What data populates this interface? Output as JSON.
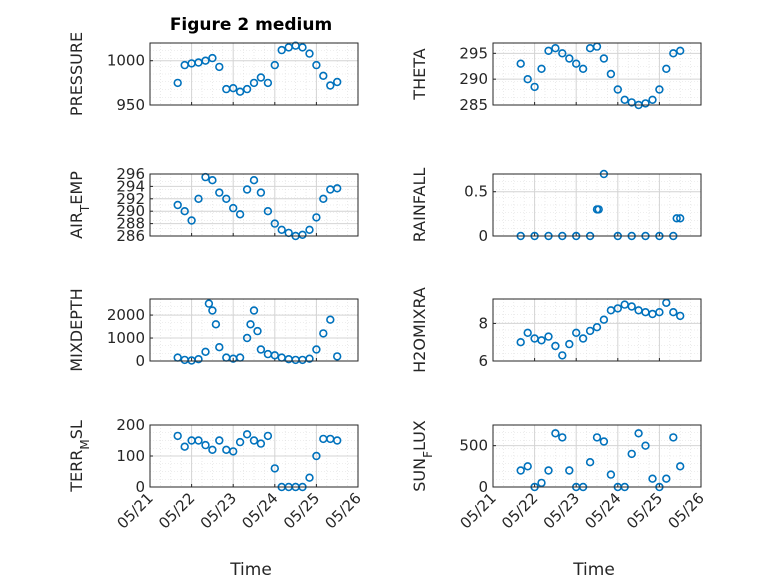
{
  "figure": {
    "title": "Figure 2 medium",
    "marker_color": "#0072BD",
    "grid": true
  },
  "chart_data": [
    {
      "type": "scatter",
      "ylabel": "PRESSURE",
      "ylim": [
        950,
        1020
      ],
      "yticks": [
        950,
        1000
      ],
      "x": [
        "05/21 16:00",
        "05/21 20:00",
        "05/22 00:00",
        "05/22 04:00",
        "05/22 08:00",
        "05/22 12:00",
        "05/22 16:00",
        "05/22 20:00",
        "05/23 00:00",
        "05/23 04:00",
        "05/23 08:00",
        "05/23 12:00",
        "05/23 16:00",
        "05/23 20:00",
        "05/24 00:00",
        "05/24 04:00",
        "05/24 08:00",
        "05/24 12:00",
        "05/24 16:00",
        "05/24 20:00",
        "05/25 00:00",
        "05/25 04:00",
        "05/25 08:00",
        "05/25 12:00"
      ],
      "y": [
        975,
        995,
        997,
        998,
        1000,
        1003,
        993,
        968,
        969,
        965,
        968,
        975,
        981,
        975,
        995,
        1012,
        1015,
        1017,
        1015,
        1008,
        995,
        983,
        972,
        976
      ]
    },
    {
      "type": "scatter",
      "ylabel": "THETA",
      "ylim": [
        285,
        297
      ],
      "yticks": [
        285,
        290,
        295
      ],
      "x": [
        "05/21 16:00",
        "05/21 20:00",
        "05/22 00:00",
        "05/22 04:00",
        "05/22 08:00",
        "05/22 12:00",
        "05/22 16:00",
        "05/22 20:00",
        "05/23 00:00",
        "05/23 04:00",
        "05/23 08:00",
        "05/23 12:00",
        "05/23 16:00",
        "05/23 20:00",
        "05/24 00:00",
        "05/24 04:00",
        "05/24 08:00",
        "05/24 12:00",
        "05/24 16:00",
        "05/24 20:00",
        "05/25 00:00",
        "05/25 04:00",
        "05/25 08:00",
        "05/25 12:00"
      ],
      "y": [
        293,
        290,
        288.5,
        292,
        295.5,
        296,
        295,
        294,
        293,
        292,
        296,
        296.3,
        294,
        291,
        288,
        286,
        285.5,
        285,
        285.3,
        286,
        288,
        292,
        295,
        295.5
      ]
    },
    {
      "type": "scatter",
      "ylabel": "AIR_TEMP",
      "ylim": [
        286,
        296
      ],
      "yticks": [
        286,
        288,
        290,
        292,
        294,
        296
      ],
      "x": [
        "05/21 16:00",
        "05/21 20:00",
        "05/22 00:00",
        "05/22 04:00",
        "05/22 08:00",
        "05/22 12:00",
        "05/22 16:00",
        "05/22 20:00",
        "05/23 00:00",
        "05/23 04:00",
        "05/23 08:00",
        "05/23 12:00",
        "05/23 16:00",
        "05/23 20:00",
        "05/24 00:00",
        "05/24 04:00",
        "05/24 08:00",
        "05/24 12:00",
        "05/24 16:00",
        "05/24 20:00",
        "05/25 00:00",
        "05/25 04:00",
        "05/25 08:00",
        "05/25 12:00"
      ],
      "y": [
        291,
        290,
        288.5,
        292,
        295.5,
        295,
        293,
        292,
        290.5,
        289.5,
        293.5,
        295,
        293,
        290,
        288,
        287,
        286.5,
        286,
        286.2,
        287,
        289,
        292,
        293.5,
        293.7
      ]
    },
    {
      "type": "scatter",
      "ylabel": "RAINFALL",
      "ylim": [
        0,
        0.7
      ],
      "yticks": [
        0,
        0.5
      ],
      "x": [
        "05/21 16:00",
        "05/22 00:00",
        "05/22 08:00",
        "05/22 16:00",
        "05/23 00:00",
        "05/23 08:00",
        "05/23 12:00",
        "05/23 13:00",
        "05/23 16:00",
        "05/24 00:00",
        "05/24 08:00",
        "05/24 16:00",
        "05/25 00:00",
        "05/25 08:00",
        "05/25 10:00",
        "05/25 12:00"
      ],
      "y": [
        0,
        0,
        0,
        0,
        0,
        0,
        0.3,
        0.3,
        0.7,
        0,
        0,
        0,
        0,
        0,
        0.2,
        0.2
      ]
    },
    {
      "type": "scatter",
      "ylabel": "MIXDEPTH",
      "ylim": [
        0,
        2700
      ],
      "yticks": [
        0,
        1000,
        2000
      ],
      "x": [
        "05/21 16:00",
        "05/21 20:00",
        "05/22 00:00",
        "05/22 04:00",
        "05/22 08:00",
        "05/22 10:00",
        "05/22 12:00",
        "05/22 14:00",
        "05/22 16:00",
        "05/22 20:00",
        "05/23 00:00",
        "05/23 04:00",
        "05/23 08:00",
        "05/23 10:00",
        "05/23 12:00",
        "05/23 14:00",
        "05/23 16:00",
        "05/23 20:00",
        "05/24 00:00",
        "05/24 04:00",
        "05/24 08:00",
        "05/24 12:00",
        "05/24 16:00",
        "05/24 20:00",
        "05/25 00:00",
        "05/25 04:00",
        "05/25 08:00",
        "05/25 12:00"
      ],
      "y": [
        150,
        50,
        20,
        80,
        400,
        2500,
        2200,
        1600,
        600,
        150,
        100,
        150,
        1000,
        1600,
        2200,
        1300,
        500,
        300,
        250,
        150,
        80,
        50,
        50,
        100,
        500,
        1200,
        1800,
        200
      ]
    },
    {
      "type": "scatter",
      "ylabel": "H2OMIXRA",
      "ylim": [
        6,
        9.3
      ],
      "yticks": [
        6,
        8
      ],
      "x": [
        "05/21 16:00",
        "05/21 20:00",
        "05/22 00:00",
        "05/22 04:00",
        "05/22 08:00",
        "05/22 12:00",
        "05/22 16:00",
        "05/22 20:00",
        "05/23 00:00",
        "05/23 04:00",
        "05/23 08:00",
        "05/23 12:00",
        "05/23 16:00",
        "05/23 20:00",
        "05/24 00:00",
        "05/24 04:00",
        "05/24 08:00",
        "05/24 12:00",
        "05/24 16:00",
        "05/24 20:00",
        "05/25 00:00",
        "05/25 04:00",
        "05/25 08:00",
        "05/25 12:00"
      ],
      "y": [
        7,
        7.5,
        7.2,
        7.1,
        7.3,
        6.8,
        6.3,
        6.9,
        7.5,
        7.2,
        7.6,
        7.8,
        8.2,
        8.7,
        8.8,
        9,
        8.9,
        8.7,
        8.6,
        8.5,
        8.6,
        9.1,
        8.6,
        8.4
      ]
    },
    {
      "type": "scatter",
      "ylabel": "TERR_MSL",
      "ylim": [
        0,
        200
      ],
      "yticks": [
        0,
        100,
        200
      ],
      "x": [
        "05/21 16:00",
        "05/21 20:00",
        "05/22 00:00",
        "05/22 04:00",
        "05/22 08:00",
        "05/22 12:00",
        "05/22 16:00",
        "05/22 20:00",
        "05/23 00:00",
        "05/23 04:00",
        "05/23 08:00",
        "05/23 12:00",
        "05/23 16:00",
        "05/23 20:00",
        "05/24 00:00",
        "05/24 04:00",
        "05/24 08:00",
        "05/24 12:00",
        "05/24 16:00",
        "05/24 20:00",
        "05/25 00:00",
        "05/25 04:00",
        "05/25 08:00",
        "05/25 12:00"
      ],
      "y": [
        165,
        130,
        150,
        150,
        135,
        120,
        150,
        120,
        115,
        145,
        170,
        150,
        140,
        165,
        60,
        0,
        0,
        0,
        0,
        30,
        100,
        155,
        155,
        150
      ]
    },
    {
      "type": "scatter",
      "ylabel": "SUN_FLUX",
      "ylim": [
        0,
        750
      ],
      "yticks": [
        0,
        500
      ],
      "x": [
        "05/21 16:00",
        "05/21 20:00",
        "05/22 00:00",
        "05/22 04:00",
        "05/22 08:00",
        "05/22 12:00",
        "05/22 16:00",
        "05/22 20:00",
        "05/23 00:00",
        "05/23 04:00",
        "05/23 08:00",
        "05/23 12:00",
        "05/23 16:00",
        "05/23 20:00",
        "05/24 00:00",
        "05/24 04:00",
        "05/24 08:00",
        "05/24 12:00",
        "05/24 16:00",
        "05/24 20:00",
        "05/25 00:00",
        "05/25 04:00",
        "05/25 08:00",
        "05/25 12:00"
      ],
      "y": [
        200,
        250,
        0,
        50,
        200,
        650,
        600,
        200,
        0,
        0,
        300,
        600,
        550,
        150,
        0,
        0,
        400,
        650,
        500,
        100,
        0,
        100,
        600,
        250
      ]
    }
  ],
  "xaxis": {
    "label": "Time",
    "ticks": [
      "05/21",
      "05/22",
      "05/23",
      "05/24",
      "05/25",
      "05/26"
    ],
    "range": [
      "05/21 00:00",
      "05/26 00:00"
    ]
  }
}
